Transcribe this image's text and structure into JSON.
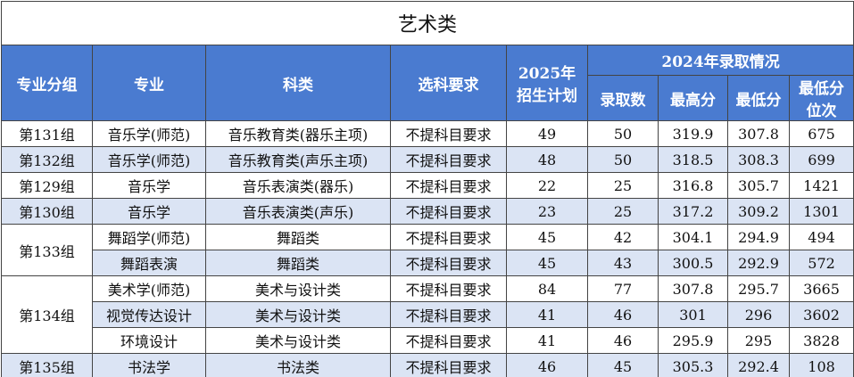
{
  "title": "艺术类",
  "headers": {
    "group": "专业分组",
    "major": "专业",
    "subject": "科类",
    "requirement": "选科要求",
    "plan": [
      "2025年",
      "招生计划"
    ],
    "admission": "2024年录取情况",
    "sub": [
      "录取数",
      "最高分",
      "最低分"
    ],
    "rank": [
      "最低分",
      "位次"
    ]
  },
  "groups": [
    {
      "name": "第131组",
      "rows": [
        [
          "音乐学(师范)",
          "音乐教育类(器乐主项)",
          "不提科目要求",
          49,
          50,
          319.9,
          307.8,
          675
        ]
      ]
    },
    {
      "name": "第132组",
      "rows": [
        [
          "音乐学(师范)",
          "音乐教育类(声乐主项)",
          "不提科目要求",
          48,
          50,
          318.5,
          308.3,
          699
        ]
      ]
    },
    {
      "name": "第129组",
      "rows": [
        [
          "音乐学",
          "音乐表演类(器乐)",
          "不提科目要求",
          22,
          25,
          316.8,
          305.7,
          1421
        ]
      ]
    },
    {
      "name": "第130组",
      "rows": [
        [
          "音乐学",
          "音乐表演类(声乐)",
          "不提科目要求",
          23,
          25,
          317.2,
          309.2,
          1301
        ]
      ]
    },
    {
      "name": "第133组",
      "rows": [
        [
          "舞蹈学(师范)",
          "舞蹈类",
          "不提科目要求",
          45,
          42,
          304.1,
          294.9,
          494
        ],
        [
          "舞蹈表演",
          "舞蹈类",
          "不提科目要求",
          45,
          43,
          300.5,
          292.9,
          572
        ]
      ]
    },
    {
      "name": "第134组",
      "rows": [
        [
          "美术学(师范)",
          "美术与设计类",
          "不提科目要求",
          84,
          77,
          307.8,
          295.7,
          3665
        ],
        [
          "视觉传达设计",
          "美术与设计类",
          "不提科目要求",
          41,
          46,
          301,
          296,
          3602
        ],
        [
          "环境设计",
          "美术与设计类",
          "不提科目要求",
          41,
          46,
          295.9,
          295,
          3828
        ]
      ]
    },
    {
      "name": "第135组",
      "rows": [
        [
          "书法学",
          "书法类",
          "不提科目要求",
          46,
          45,
          305.3,
          292.4,
          108
        ]
      ]
    }
  ]
}
